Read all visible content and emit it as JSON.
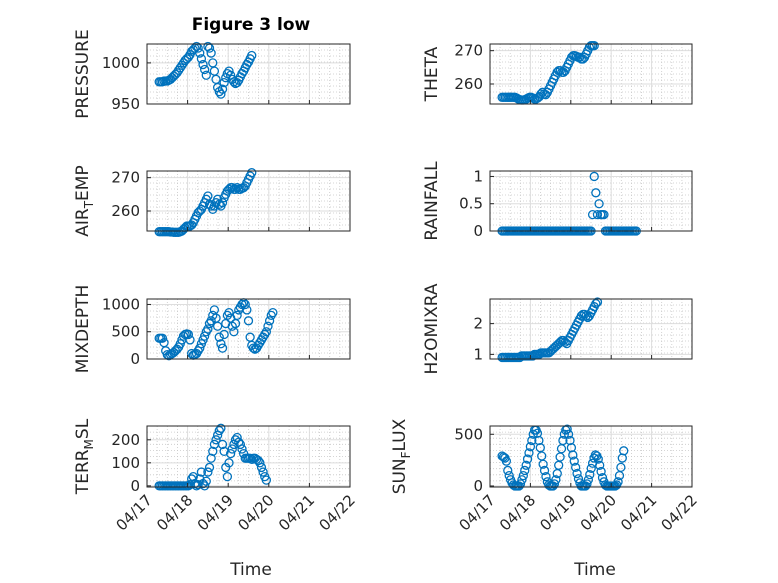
{
  "title": "Figure 3 low",
  "colors": {
    "marker": "#0072BD",
    "axis": "#262626",
    "grid": "#c8c8c8",
    "background": "#ffffff"
  },
  "xlabel": "Time",
  "chart_data": [
    {
      "id": "pressure",
      "type": "scatter",
      "ylabel": "PRESSURE",
      "ylabel_parts": [
        "PRESSURE"
      ],
      "ylim": [
        950,
        1023
      ],
      "yticks": [
        950,
        1000
      ],
      "xlim": [
        "04/17",
        "04/22"
      ],
      "xticks": [
        "04/17",
        "04/18",
        "04/19",
        "04/20",
        "04/21",
        "04/22"
      ],
      "grid": "dotted",
      "series": [
        {
          "x_start": 0.3,
          "x_step": 0.04,
          "values": [
            977,
            977,
            977,
            978,
            978,
            978,
            979,
            980,
            982,
            984,
            986,
            988,
            991,
            994,
            997,
            1000,
            1003,
            1005,
            1007,
            1010,
            1014,
            1016,
            1018,
            1020,
            1018,
            1012,
            1005,
            998,
            992,
            985,
            1020,
            1018,
            1012,
            1000,
            990,
            980,
            970,
            965,
            962,
            968,
            976,
            982,
            987,
            990,
            985,
            980,
            977,
            975,
            976,
            979,
            983,
            987,
            990,
            994,
            998,
            1001,
            1005,
            1009
          ]
        }
      ]
    },
    {
      "id": "theta",
      "type": "scatter",
      "ylabel": "THETA",
      "ylabel_parts": [
        "THETA"
      ],
      "ylim": [
        254,
        272
      ],
      "yticks": [
        260,
        270
      ],
      "xlim": [
        "04/17",
        "04/22"
      ],
      "xticks": [
        "04/17",
        "04/18",
        "04/19",
        "04/20",
        "04/21",
        "04/22"
      ],
      "grid": "dotted",
      "series": [
        {
          "x_start": 0.3,
          "x_step": 0.04,
          "values": [
            256,
            256,
            256,
            256,
            256,
            256,
            256,
            256,
            256,
            255.8,
            255.5,
            255.3,
            255.2,
            255.2,
            255.3,
            255.5,
            255.8,
            256,
            256,
            255.8,
            255.5,
            255.5,
            255.8,
            256.2,
            257,
            257.5,
            257,
            256.8,
            257.5,
            258.5,
            259.5,
            260.5,
            261.5,
            262.5,
            263.5,
            264,
            264,
            263.5,
            263.5,
            264,
            265,
            266,
            267,
            268,
            268.5,
            268.5,
            268.3,
            268,
            268,
            267.5,
            267.5,
            268,
            269,
            270,
            271,
            271.5,
            271.5,
            271.5
          ]
        }
      ]
    },
    {
      "id": "air_temp",
      "type": "scatter",
      "ylabel": "AIR_TEMP",
      "ylabel_parts": [
        "AIR",
        "T",
        "EMP"
      ],
      "ylim": [
        254,
        272
      ],
      "yticks": [
        260,
        270
      ],
      "xlim": [
        "04/17",
        "04/22"
      ],
      "xticks": [
        "04/17",
        "04/18",
        "04/19",
        "04/20",
        "04/21",
        "04/22"
      ],
      "grid": "dotted",
      "series": [
        {
          "x_start": 0.3,
          "x_step": 0.04,
          "values": [
            253.8,
            253.8,
            253.8,
            253.8,
            253.8,
            253.8,
            253.8,
            253.7,
            253.7,
            253.6,
            253.6,
            253.6,
            253.6,
            253.8,
            254,
            254.5,
            255,
            255.5,
            255.5,
            255.5,
            255.8,
            256.5,
            257.5,
            258.5,
            259.5,
            260,
            260.5,
            261.5,
            262.5,
            263.5,
            264.5,
            262,
            261.5,
            260.5,
            261.5,
            262.5,
            263.5,
            262,
            261.5,
            262.5,
            264,
            265,
            266,
            266.5,
            267,
            267,
            266.5,
            266.5,
            267,
            266.5,
            266.5,
            266.8,
            267,
            267.5,
            268.5,
            269.5,
            270.5,
            271.5
          ]
        }
      ]
    },
    {
      "id": "rainfall",
      "type": "scatter",
      "ylabel": "RAINFALL",
      "ylabel_parts": [
        "RAINFALL"
      ],
      "ylim": [
        0,
        1.1
      ],
      "yticks": [
        0,
        0.5,
        1
      ],
      "xlim": [
        "04/17",
        "04/22"
      ],
      "xticks": [
        "04/17",
        "04/18",
        "04/19",
        "04/20",
        "04/21",
        "04/22"
      ],
      "grid": "dotted",
      "series": [
        {
          "x_start": 0.3,
          "x_step": 0.04,
          "values": [
            0,
            0,
            0,
            0,
            0,
            0,
            0,
            0,
            0,
            0,
            0,
            0,
            0,
            0,
            0,
            0,
            0,
            0,
            0,
            0,
            0,
            0,
            0,
            0,
            0,
            0,
            0,
            0,
            0,
            0,
            0,
            0,
            0,
            0,
            0,
            0,
            0,
            0,
            0,
            0,
            0,
            0,
            0,
            0,
            0,
            0,
            0,
            0,
            0,
            0,
            0,
            0,
            0,
            0,
            0,
            0,
            0.3,
            1,
            0.7,
            0.3,
            0.5,
            0.3,
            0.3,
            0.3,
            0,
            0,
            0,
            0,
            0,
            0,
            0,
            0,
            0,
            0,
            0,
            0,
            0,
            0,
            0,
            0,
            0,
            0,
            0,
            0
          ]
        }
      ]
    },
    {
      "id": "mixdepth",
      "type": "scatter",
      "ylabel": "MIXDEPTH",
      "ylabel_parts": [
        "MIXDEPTH"
      ],
      "ylim": [
        0,
        1100
      ],
      "yticks": [
        0,
        500,
        1000
      ],
      "xlim": [
        "04/17",
        "04/22"
      ],
      "xticks": [
        "04/17",
        "04/18",
        "04/19",
        "04/20",
        "04/21",
        "04/22"
      ],
      "grid": "dotted",
      "series": [
        {
          "x_start": 0.3,
          "x_step": 0.04,
          "values": [
            380,
            380,
            380,
            300,
            150,
            80,
            60,
            80,
            100,
            120,
            150,
            180,
            220,
            280,
            350,
            420,
            450,
            460,
            450,
            350,
            100,
            70,
            80,
            100,
            150,
            200,
            280,
            350,
            420,
            500,
            550,
            650,
            700,
            800,
            900,
            750,
            600,
            400,
            280,
            200,
            450,
            650,
            800,
            850,
            750,
            600,
            500,
            650,
            800,
            900,
            950,
            1000,
            1030,
            1000,
            900,
            700,
            400,
            250,
            200,
            180,
            200,
            250,
            300,
            350,
            400,
            450,
            500,
            600,
            700,
            800,
            850
          ]
        }
      ]
    },
    {
      "id": "h2omixra",
      "type": "scatter",
      "ylabel": "H2OMIXRA",
      "ylabel_parts": [
        "H2OMIXRA"
      ],
      "ylim": [
        0.85,
        2.8
      ],
      "yticks": [
        1,
        2
      ],
      "xlim": [
        "04/17",
        "04/22"
      ],
      "xticks": [
        "04/17",
        "04/18",
        "04/19",
        "04/20",
        "04/21",
        "04/22"
      ],
      "grid": "dotted",
      "series": [
        {
          "x_start": 0.3,
          "x_step": 0.04,
          "values": [
            0.9,
            0.9,
            0.9,
            0.9,
            0.9,
            0.9,
            0.9,
            0.9,
            0.9,
            0.9,
            0.9,
            0.9,
            0.95,
            0.95,
            0.95,
            0.95,
            0.95,
            0.95,
            0.95,
            0.95,
            1.0,
            1.0,
            1.0,
            1.0,
            1.05,
            1.05,
            1.05,
            1.05,
            1.05,
            1.05,
            1.1,
            1.15,
            1.2,
            1.25,
            1.3,
            1.35,
            1.4,
            1.45,
            1.45,
            1.4,
            1.35,
            1.45,
            1.55,
            1.65,
            1.75,
            1.85,
            1.95,
            2.05,
            2.15,
            2.25,
            2.3,
            2.3,
            2.25,
            2.2,
            2.25,
            2.35,
            2.45,
            2.55,
            2.65,
            2.7
          ]
        }
      ]
    },
    {
      "id": "terr_msl",
      "type": "scatter",
      "ylabel": "TERR_MSL",
      "ylabel_parts": [
        "TERR",
        "M",
        "SL"
      ],
      "ylim": [
        -5,
        260
      ],
      "yticks": [
        0,
        100,
        200
      ],
      "xlim": [
        "04/17",
        "04/22"
      ],
      "xticks": [
        "04/17",
        "04/18",
        "04/19",
        "04/20",
        "04/21",
        "04/22"
      ],
      "grid": "dotted",
      "series": [
        {
          "x_start": 0.3,
          "x_step": 0.04,
          "values": [
            0,
            0,
            0,
            0,
            0,
            0,
            0,
            0,
            0,
            0,
            0,
            0,
            0,
            0,
            0,
            0,
            0,
            0,
            0,
            5,
            30,
            40,
            10,
            0,
            5,
            30,
            60,
            10,
            0,
            20,
            60,
            80,
            120,
            150,
            180,
            200,
            220,
            240,
            250,
            180,
            150,
            80,
            40,
            100,
            140,
            160,
            180,
            200,
            210,
            190,
            180,
            160,
            140,
            120,
            120,
            120,
            120,
            115,
            120,
            120,
            115,
            110,
            100,
            80,
            60,
            40,
            25
          ]
        }
      ]
    },
    {
      "id": "sun_flux",
      "type": "scatter",
      "ylabel": "SUN_FLUX",
      "ylabel_parts": [
        "SUN",
        "F",
        "LUX"
      ],
      "ylim": [
        -10,
        580
      ],
      "yticks": [
        0,
        500
      ],
      "xlim": [
        "04/17",
        "04/22"
      ],
      "xticks": [
        "04/17",
        "04/18",
        "04/19",
        "04/20",
        "04/21",
        "04/22"
      ],
      "grid": "dotted",
      "series": [
        {
          "x_start": 0.3,
          "x_step": 0.035,
          "values": [
            290,
            280,
            270,
            240,
            150,
            100,
            60,
            30,
            10,
            0,
            0,
            0,
            0,
            20,
            60,
            100,
            150,
            200,
            260,
            320,
            380,
            440,
            500,
            540,
            540,
            510,
            440,
            370,
            290,
            210,
            150,
            90,
            40,
            10,
            0,
            0,
            0,
            20,
            60,
            120,
            200,
            280,
            360,
            440,
            500,
            540,
            550,
            500,
            440,
            370,
            300,
            240,
            180,
            120,
            70,
            30,
            0,
            0,
            0,
            0,
            20,
            60,
            110,
            170,
            220,
            270,
            300,
            290,
            260,
            200,
            140,
            80,
            40,
            10,
            0,
            0,
            0,
            0,
            0,
            0,
            0,
            10,
            40,
            100,
            180,
            270,
            340
          ]
        }
      ]
    }
  ]
}
